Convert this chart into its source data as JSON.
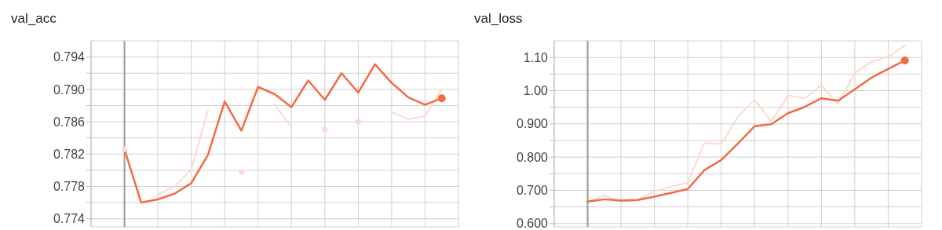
{
  "chart_data": [
    {
      "type": "line",
      "title": "val_acc",
      "categories": [
        null,
        null,
        null,
        null,
        null,
        null,
        null,
        null,
        null,
        null,
        null,
        null,
        null,
        null,
        null,
        null,
        null,
        null,
        null,
        null
      ],
      "tick_labels": "y",
      "ylim": [
        0.773,
        0.796
      ],
      "yticks": [
        {
          "value": 0.774,
          "label": "0.774"
        },
        {
          "value": 0.776,
          "label": null
        },
        {
          "value": 0.778,
          "label": "0.778"
        },
        {
          "value": 0.78,
          "label": null
        },
        {
          "value": 0.782,
          "label": "0.782"
        },
        {
          "value": 0.784,
          "label": null
        },
        {
          "value": 0.786,
          "label": "0.786"
        },
        {
          "value": 0.788,
          "label": null
        },
        {
          "value": 0.79,
          "label": "0.790"
        },
        {
          "value": 0.792,
          "label": null
        },
        {
          "value": 0.794,
          "label": "0.794"
        }
      ],
      "grid": true,
      "series": [
        {
          "color": "#fcd9ce",
          "values": [
            0.7826,
            null,
            0.777,
            0.778,
            0.7801,
            0.7874,
            null,
            0.7798,
            null,
            0.7881,
            0.7853,
            null,
            0.785,
            null,
            0.786,
            null,
            0.7872,
            0.7863,
            0.7867,
            0.79
          ]
        },
        {
          "color": "#f26b43",
          "values": [
            0.7826,
            0.776,
            0.7764,
            0.7771,
            0.7784,
            0.7819,
            0.7885,
            0.7849,
            0.7903,
            0.7894,
            0.7878,
            0.7911,
            0.7887,
            0.792,
            0.7896,
            0.7931,
            0.7908,
            0.789,
            0.7881,
            0.7889
          ]
        }
      ]
    },
    {
      "type": "line",
      "title": "val_loss",
      "categories": [
        null,
        null,
        null,
        null,
        null,
        null,
        null,
        null,
        null,
        null,
        null,
        null,
        null,
        null,
        null,
        null,
        null,
        null,
        null,
        null
      ],
      "tick_labels": "y",
      "ylim": [
        0.59,
        1.15
      ],
      "yticks": [
        {
          "value": 0.6,
          "label": "0.600"
        },
        {
          "value": 0.65,
          "label": null
        },
        {
          "value": 0.7,
          "label": "0.700"
        },
        {
          "value": 0.75,
          "label": null
        },
        {
          "value": 0.8,
          "label": "0.800"
        },
        {
          "value": 0.85,
          "label": null
        },
        {
          "value": 0.9,
          "label": "0.900"
        },
        {
          "value": 0.95,
          "label": null
        },
        {
          "value": 1.0,
          "label": "1.00"
        },
        {
          "value": 1.05,
          "label": null
        },
        {
          "value": 1.1,
          "label": "1.10"
        }
      ],
      "grid": true,
      "series": [
        {
          "color": "#fcd9ce",
          "values": [
            0.666,
            0.684,
            0.666,
            0.671,
            0.697,
            0.711,
            0.723,
            0.843,
            0.839,
            0.921,
            0.972,
            0.908,
            0.985,
            0.977,
            1.017,
            0.959,
            1.053,
            1.087,
            1.102,
            1.136
          ]
        },
        {
          "color": "#f26b43",
          "values": [
            0.666,
            0.673,
            0.669,
            0.671,
            0.681,
            0.692,
            0.704,
            0.761,
            0.791,
            0.841,
            0.893,
            0.899,
            0.932,
            0.951,
            0.977,
            0.97,
            1.004,
            1.039,
            1.065,
            1.091
          ]
        }
      ]
    }
  ]
}
